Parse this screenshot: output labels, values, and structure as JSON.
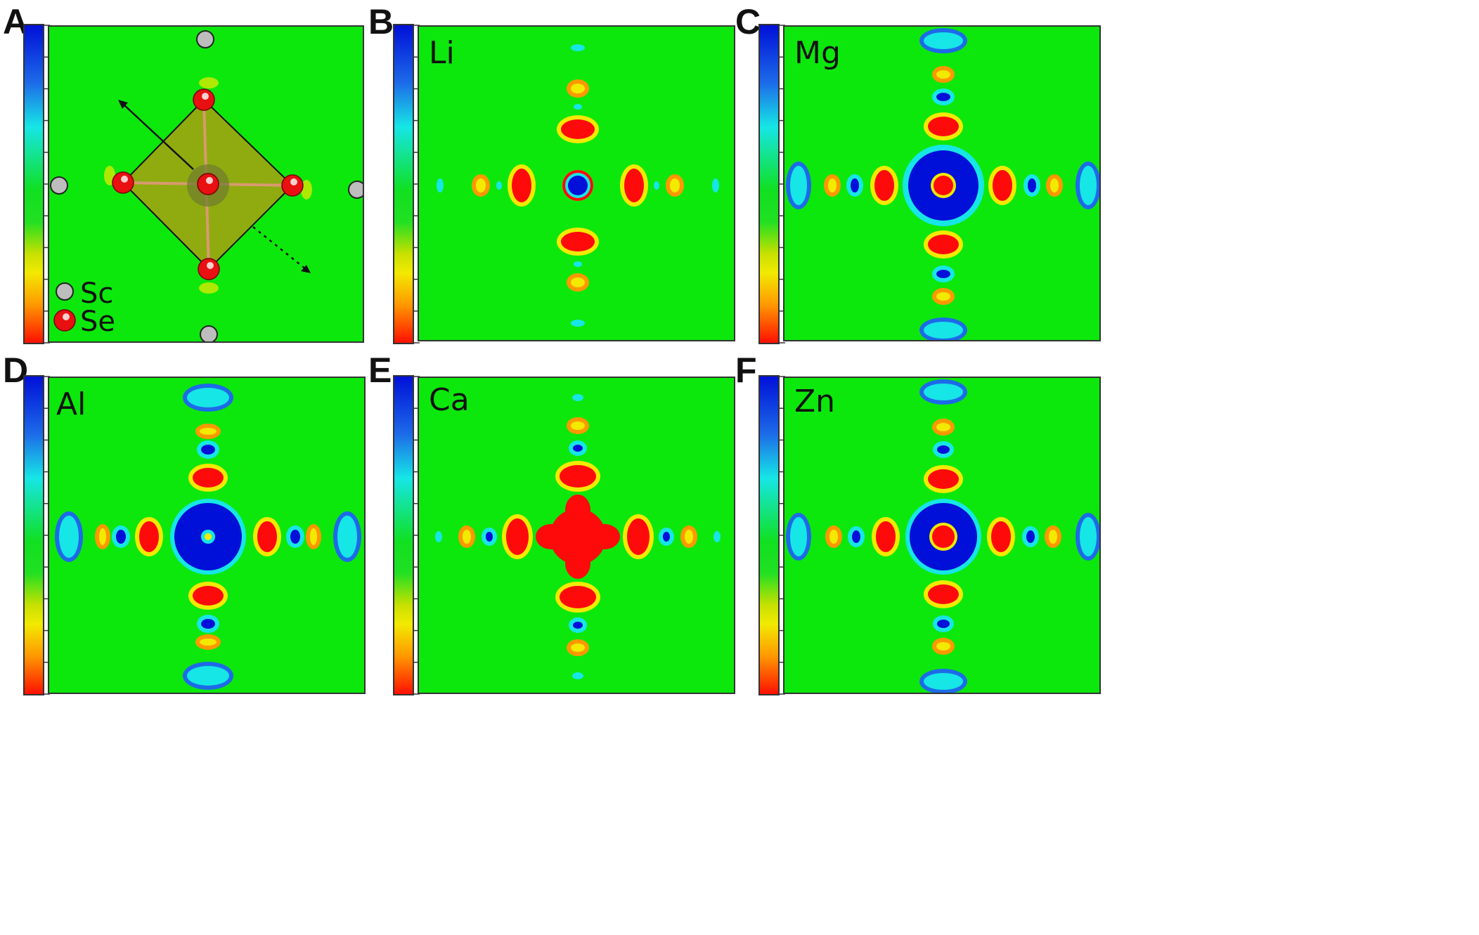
{
  "panels": [
    {
      "letter": "A",
      "element": ""
    },
    {
      "letter": "B",
      "element": "Li"
    },
    {
      "letter": "C",
      "element": "Mg"
    },
    {
      "letter": "D",
      "element": "Al"
    },
    {
      "letter": "E",
      "element": "Ca"
    },
    {
      "letter": "F",
      "element": "Zn"
    }
  ],
  "legend": {
    "sc": "Sc",
    "se": "Se"
  },
  "colors": {
    "background": "#0ce80c",
    "positive": "#ff0a0a",
    "negative": "#0010d8",
    "yellow": "#f2ea00",
    "cyan": "#16e6e6",
    "sc_atom": "#bdbdbd",
    "se_atom": "#e81010",
    "octahedron": "#a8a010"
  }
}
